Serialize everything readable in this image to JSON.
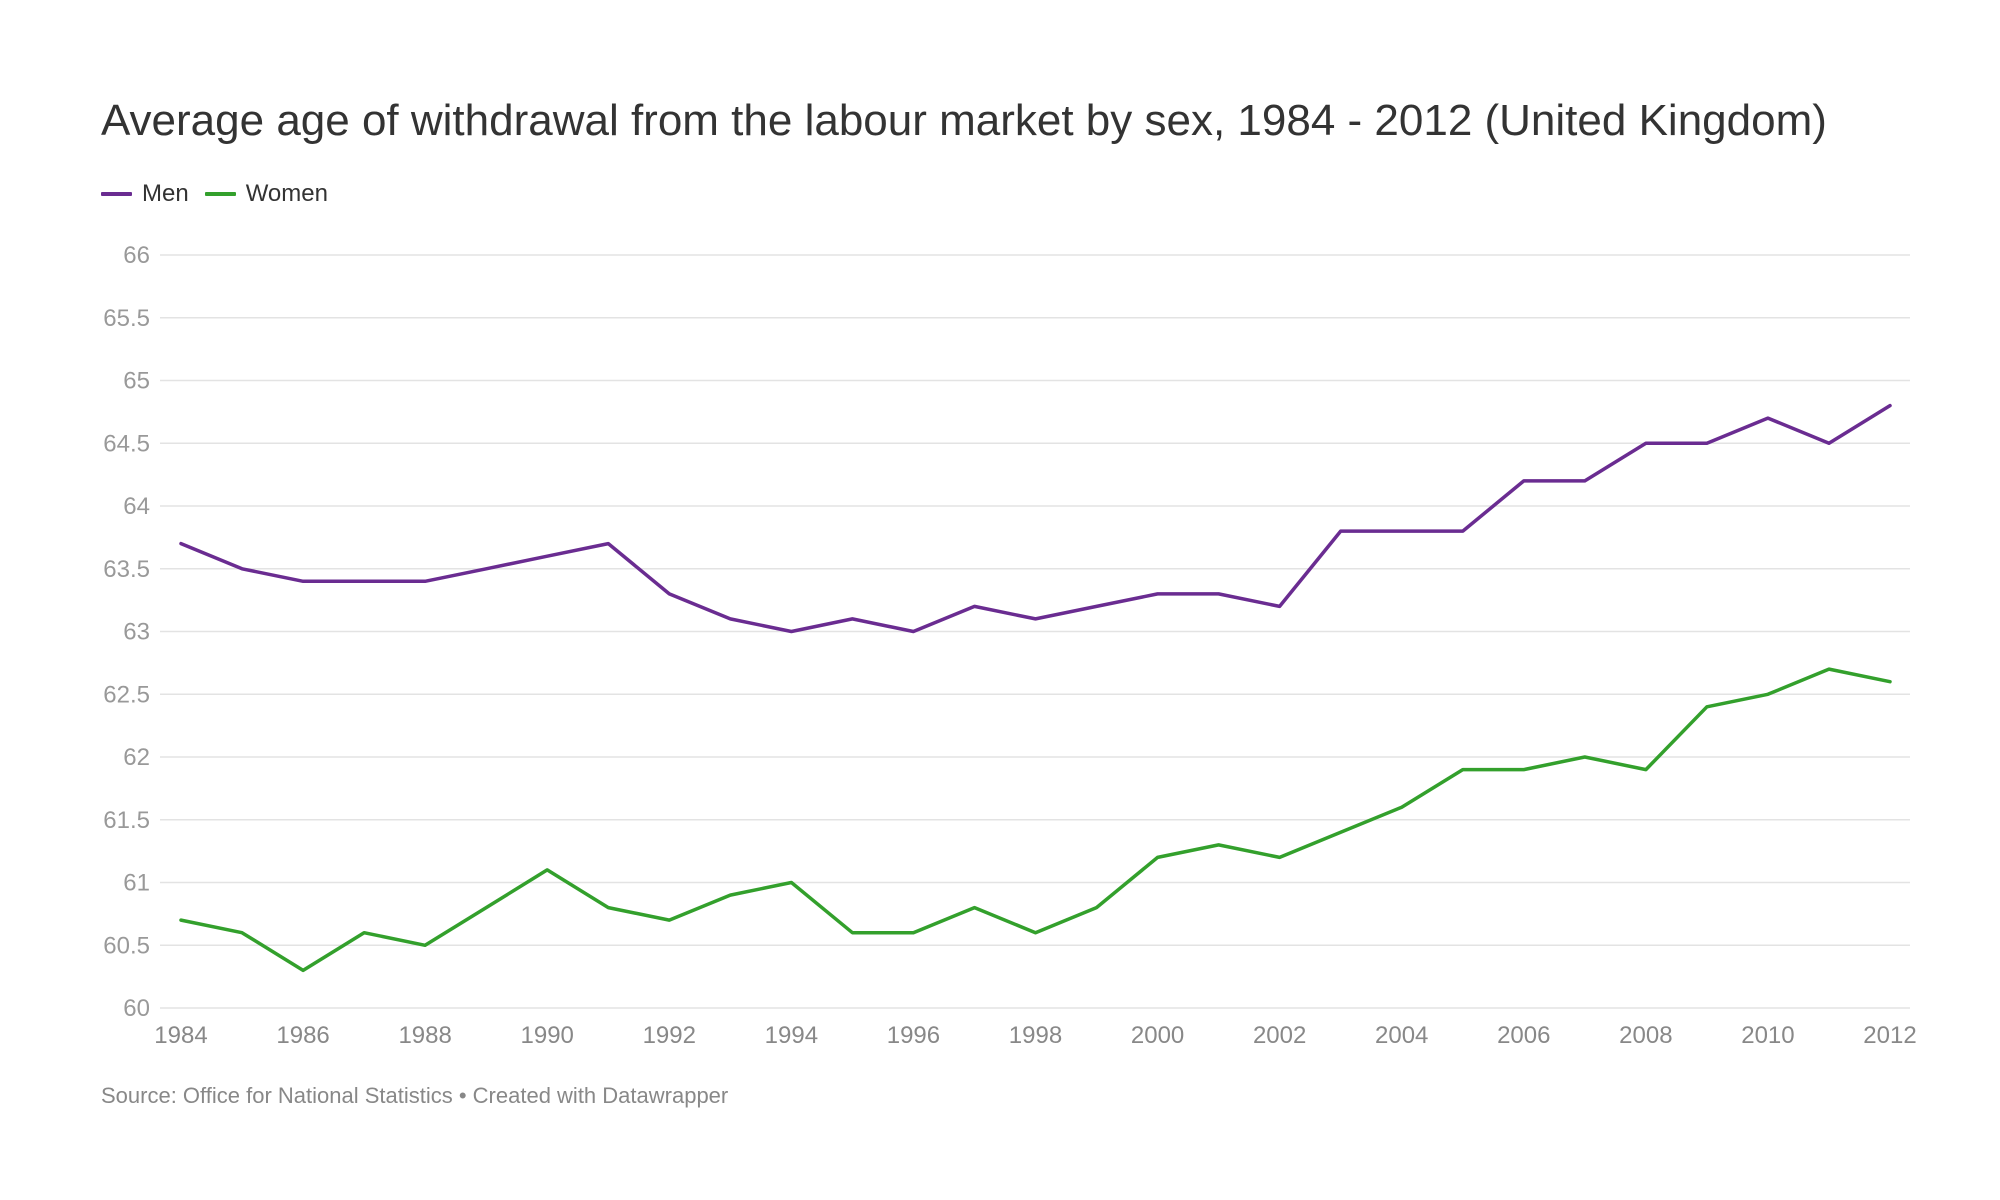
{
  "title": "Average age of withdrawal from the labour market by sex, 1984 - 2012 (United Kingdom)",
  "source": "Source: Office for National Statistics • Created with Datawrapper",
  "colors": {
    "men": "#6a2c91",
    "women": "#33a02c",
    "grid": "#e3e3e3"
  },
  "chart_data": {
    "type": "line",
    "title": "Average age of withdrawal from the labour market by sex, 1984 - 2012 (United Kingdom)",
    "xlabel": "",
    "ylabel": "",
    "ylim": [
      60,
      66
    ],
    "y_ticks": [
      60,
      60.5,
      61,
      61.5,
      62,
      62.5,
      63,
      63.5,
      64,
      64.5,
      65,
      65.5,
      66
    ],
    "y_tick_labels": [
      "60",
      "60.5",
      "61",
      "61.5",
      "62",
      "62.5",
      "63",
      "63.5",
      "64",
      "64.5",
      "65",
      "65.5",
      "66"
    ],
    "x_tick_labels": [
      "1984",
      "1986",
      "1988",
      "1990",
      "1992",
      "1994",
      "1996",
      "1998",
      "2000",
      "2002",
      "2004",
      "2006",
      "2008",
      "2010",
      "2012"
    ],
    "grid": true,
    "legend_position": "top-left",
    "x": [
      1984,
      1985,
      1986,
      1987,
      1988,
      1989,
      1990,
      1991,
      1992,
      1993,
      1994,
      1995,
      1996,
      1997,
      1998,
      1999,
      2000,
      2001,
      2002,
      2003,
      2004,
      2005,
      2006,
      2007,
      2008,
      2009,
      2010,
      2011,
      2012
    ],
    "series": [
      {
        "name": "Men",
        "color": "#6a2c91",
        "values": [
          63.7,
          63.5,
          63.4,
          63.4,
          63.4,
          63.5,
          63.6,
          63.7,
          63.3,
          63.1,
          63.0,
          63.1,
          63.0,
          63.2,
          63.1,
          63.2,
          63.3,
          63.3,
          63.2,
          63.8,
          63.8,
          63.8,
          64.2,
          64.2,
          64.5,
          64.5,
          64.7,
          64.5,
          64.8
        ]
      },
      {
        "name": "Women",
        "color": "#33a02c",
        "values": [
          60.7,
          60.6,
          60.3,
          60.6,
          60.5,
          60.8,
          61.1,
          60.8,
          60.7,
          60.9,
          61.0,
          60.6,
          60.6,
          60.8,
          60.6,
          60.8,
          61.2,
          61.3,
          61.2,
          61.4,
          61.6,
          61.9,
          61.9,
          62.0,
          61.9,
          62.4,
          62.5,
          62.7,
          62.6
        ]
      }
    ]
  }
}
